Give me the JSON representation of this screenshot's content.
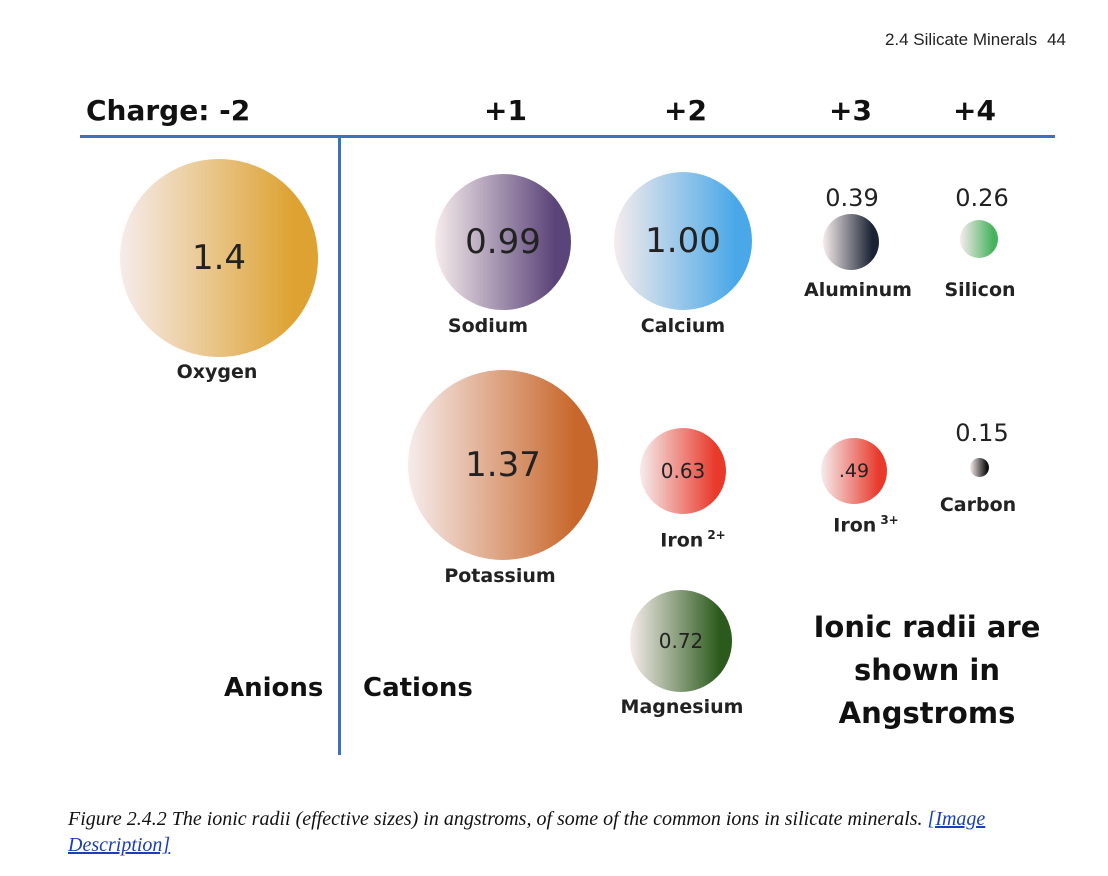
{
  "header": {
    "section": "2.4 Silicate Minerals",
    "page_number": "44"
  },
  "figure": {
    "charges": {
      "minus2": "Charge: -2",
      "plus1": "+1",
      "plus2": "+2",
      "plus3": "+3",
      "plus4": "+4"
    },
    "ions": {
      "oxygen": {
        "name": "Oxygen",
        "radius": "1.4",
        "color": "#dda231"
      },
      "sodium": {
        "name": "Sodium",
        "radius": "0.99",
        "color": "#5b4479"
      },
      "calcium": {
        "name": "Calcium",
        "radius": "1.00",
        "color": "#4aa8e8"
      },
      "aluminum": {
        "name": "Aluminum",
        "radius": "0.39",
        "color": "#1a2333"
      },
      "silicon": {
        "name": "Silicon",
        "radius": "0.26",
        "color": "#45b25c"
      },
      "potassium": {
        "name": "Potassium",
        "radius": "1.37",
        "color": "#c8672b"
      },
      "iron2": {
        "name": "Iron",
        "superscript": "2+",
        "radius": "0.63",
        "color": "#e8392b"
      },
      "iron3": {
        "name": "Iron",
        "superscript": "3+",
        "radius": ".49",
        "color": "#e8392b"
      },
      "carbon": {
        "name": "Carbon",
        "radius": "0.15",
        "color": "#111111"
      },
      "magnesium": {
        "name": "Magnesium",
        "radius": "0.72",
        "color": "#2b5a1c"
      }
    },
    "group_labels": {
      "anions": "Anions",
      "cations": "Cations"
    },
    "note": "Ionic radii are shown in Angstroms"
  },
  "caption": {
    "text": "Figure 2.4.2 The ionic radii (effective sizes) in angstroms, of some of the common ions in silicate minerals.",
    "link_text": "[Image Description]"
  }
}
